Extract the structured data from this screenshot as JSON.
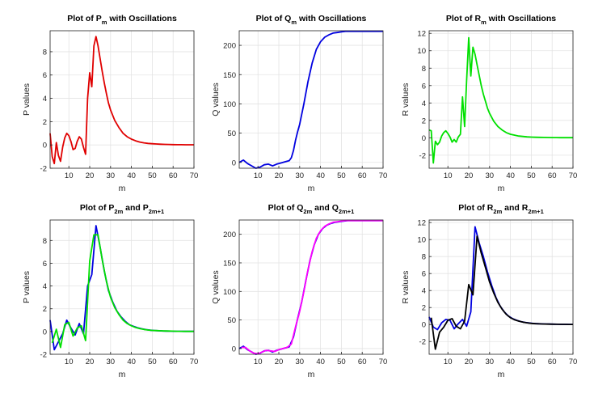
{
  "chart_data": [
    {
      "type": "line",
      "title": "Plot of P_m with Oscillations",
      "title_parts": [
        "Plot of P",
        "m",
        " with Oscillations"
      ],
      "xlabel": "m",
      "ylabel": "P values",
      "xlim": [
        1,
        70
      ],
      "ylim": [
        -2,
        9.8
      ],
      "xticks": [
        10,
        20,
        30,
        40,
        50,
        60,
        70
      ],
      "yticks": [
        -2,
        0,
        2,
        4,
        6,
        8
      ],
      "grid": true,
      "series": [
        {
          "color": "#e00000",
          "x": [
            1,
            2,
            3,
            4,
            5,
            6,
            7,
            8,
            9,
            10,
            11,
            12,
            13,
            14,
            15,
            16,
            17,
            18,
            19,
            20,
            21,
            22,
            23,
            24,
            25,
            26,
            27,
            28,
            29,
            30,
            32,
            34,
            36,
            38,
            40,
            42,
            44,
            46,
            48,
            50,
            52,
            54,
            56,
            58,
            60,
            62,
            64,
            66,
            68,
            70
          ],
          "y": [
            1.0,
            -1.0,
            -1.6,
            0.2,
            -0.9,
            -1.4,
            -0.2,
            0.6,
            1.0,
            0.8,
            0.3,
            -0.4,
            -0.3,
            0.3,
            0.7,
            0.5,
            -0.2,
            -0.8,
            4.0,
            6.2,
            5.0,
            8.5,
            9.3,
            8.5,
            7.4,
            6.3,
            5.3,
            4.4,
            3.6,
            3.0,
            2.1,
            1.5,
            1.0,
            0.7,
            0.5,
            0.35,
            0.25,
            0.18,
            0.13,
            0.1,
            0.08,
            0.06,
            0.05,
            0.04,
            0.03,
            0.02,
            0.02,
            0.01,
            0.01,
            0.01
          ]
        }
      ]
    },
    {
      "type": "line",
      "title": "Plot of Q_m with Oscillations",
      "title_parts": [
        "Plot of Q",
        "m",
        " with Oscillations"
      ],
      "xlabel": "m",
      "ylabel": "Q values",
      "xlim": [
        1,
        70
      ],
      "ylim": [
        -10,
        225
      ],
      "xticks": [
        10,
        20,
        30,
        40,
        50,
        60,
        70
      ],
      "yticks": [
        0,
        50,
        100,
        150,
        200
      ],
      "grid": true,
      "series": [
        {
          "color": "#0000e0",
          "x": [
            1,
            3,
            5,
            7,
            9,
            11,
            13,
            15,
            17,
            19,
            21,
            23,
            25,
            26,
            27,
            28,
            29,
            30,
            32,
            34,
            36,
            38,
            40,
            42,
            44,
            46,
            48,
            50,
            52,
            54,
            56,
            58,
            60,
            62,
            64,
            66,
            68,
            70
          ],
          "y": [
            0,
            4,
            -2,
            -6,
            -10,
            -8,
            -4,
            -3,
            -6,
            -3,
            -1,
            1,
            3,
            8,
            20,
            38,
            52,
            65,
            100,
            138,
            170,
            193,
            206,
            214,
            218,
            221,
            222,
            223,
            224,
            224,
            224,
            224,
            224,
            224,
            224,
            224,
            224,
            224
          ]
        }
      ]
    },
    {
      "type": "line",
      "title": "Plot of R_m with Oscillations",
      "title_parts": [
        "Plot of R",
        "m",
        " with Oscillations"
      ],
      "xlabel": "m",
      "ylabel": "R values",
      "xlim": [
        1,
        70
      ],
      "ylim": [
        -3.5,
        12.3
      ],
      "xticks": [
        10,
        20,
        30,
        40,
        50,
        60,
        70
      ],
      "yticks": [
        -2,
        0,
        2,
        4,
        6,
        8,
        10,
        12
      ],
      "grid": true,
      "series": [
        {
          "color": "#00e000",
          "x": [
            1,
            2,
            3,
            4,
            5,
            6,
            7,
            8,
            9,
            10,
            11,
            12,
            13,
            14,
            15,
            16,
            17,
            18,
            19,
            20,
            21,
            22,
            23,
            24,
            25,
            26,
            27,
            28,
            29,
            30,
            32,
            34,
            36,
            38,
            40,
            42,
            44,
            46,
            48,
            50,
            52,
            54,
            56,
            58,
            60,
            62,
            64,
            66,
            68,
            70
          ],
          "y": [
            0.9,
            0.8,
            -2.9,
            -0.4,
            -0.8,
            -0.5,
            0.2,
            0.6,
            0.8,
            0.5,
            0.1,
            -0.5,
            -0.2,
            -0.5,
            0.1,
            0.4,
            4.7,
            1.3,
            6.6,
            11.5,
            7.1,
            10.4,
            9.6,
            8.4,
            7.2,
            6.0,
            5.0,
            4.2,
            3.4,
            2.8,
            1.9,
            1.3,
            0.9,
            0.6,
            0.4,
            0.3,
            0.2,
            0.15,
            0.11,
            0.08,
            0.06,
            0.05,
            0.04,
            0.03,
            0.02,
            0.02,
            0.01,
            0.01,
            0.01,
            0.01
          ]
        }
      ]
    },
    {
      "type": "line",
      "title": "Plot of P_2m and P_2m+1",
      "title_parts": [
        "Plot of P",
        "2m",
        " and P",
        "2m+1"
      ],
      "xlabel": "m",
      "ylabel": "P values",
      "xlim": [
        1,
        70
      ],
      "ylim": [
        -2,
        9.8
      ],
      "xticks": [
        10,
        20,
        30,
        40,
        50,
        60,
        70
      ],
      "yticks": [
        -2,
        0,
        2,
        4,
        6,
        8
      ],
      "grid": true,
      "series": [
        {
          "color": "#0000e0",
          "x": [
            1,
            3,
            5,
            7,
            9,
            11,
            13,
            15,
            17,
            19,
            21,
            23,
            25,
            27,
            29,
            31,
            33,
            35,
            37,
            39,
            41,
            43,
            45,
            47,
            49,
            51,
            53,
            55,
            57,
            59,
            61,
            63,
            65,
            67,
            69,
            70
          ],
          "y": [
            1.0,
            -1.6,
            -0.9,
            -0.2,
            1.0,
            0.3,
            -0.3,
            0.7,
            -0.2,
            4.0,
            5.0,
            9.3,
            7.4,
            5.3,
            3.6,
            2.6,
            1.8,
            1.3,
            0.9,
            0.6,
            0.45,
            0.33,
            0.24,
            0.17,
            0.12,
            0.09,
            0.07,
            0.05,
            0.04,
            0.03,
            0.02,
            0.02,
            0.01,
            0.01,
            0.01,
            0.01
          ]
        },
        {
          "color": "#00e000",
          "x": [
            2,
            4,
            6,
            8,
            10,
            12,
            14,
            16,
            18,
            20,
            22,
            24,
            26,
            28,
            30,
            32,
            34,
            36,
            38,
            40,
            42,
            44,
            46,
            48,
            50,
            52,
            54,
            56,
            58,
            60,
            62,
            64,
            66,
            68,
            70
          ],
          "y": [
            -1.0,
            0.2,
            -1.4,
            0.6,
            0.8,
            -0.4,
            0.3,
            0.5,
            -0.8,
            6.2,
            8.5,
            8.5,
            6.3,
            4.4,
            3.0,
            2.1,
            1.5,
            1.0,
            0.7,
            0.5,
            0.35,
            0.25,
            0.18,
            0.13,
            0.1,
            0.08,
            0.06,
            0.05,
            0.04,
            0.03,
            0.02,
            0.02,
            0.01,
            0.01,
            0.01
          ]
        }
      ]
    },
    {
      "type": "line",
      "title": "Plot of Q_2m and Q_2m+1",
      "title_parts": [
        "Plot of Q",
        "2m",
        " and Q",
        "2m+1"
      ],
      "xlabel": "m",
      "ylabel": "Q values",
      "xlim": [
        1,
        70
      ],
      "ylim": [
        -10,
        225
      ],
      "xticks": [
        10,
        20,
        30,
        40,
        50,
        60,
        70
      ],
      "yticks": [
        0,
        50,
        100,
        150,
        200
      ],
      "grid": true,
      "series": [
        {
          "color": "#0000e0",
          "x": [
            1,
            3,
            5,
            7,
            9,
            11,
            13,
            15,
            17,
            19,
            21,
            23,
            25,
            27,
            29,
            31,
            33,
            35,
            37,
            39,
            41,
            43,
            45,
            47,
            49,
            51,
            53,
            55,
            57,
            59,
            61,
            63,
            65,
            67,
            69,
            70
          ],
          "y": [
            0,
            4,
            -2,
            -6,
            -10,
            -8,
            -4,
            -3,
            -6,
            -3,
            -1,
            1,
            3,
            20,
            52,
            82,
            120,
            155,
            182,
            200,
            210,
            216,
            219,
            221,
            222,
            223,
            224,
            224,
            224,
            224,
            224,
            224,
            224,
            224,
            224,
            224
          ]
        },
        {
          "color": "#ff00ff",
          "x": [
            2,
            4,
            6,
            8,
            10,
            12,
            14,
            16,
            18,
            20,
            22,
            24,
            26,
            28,
            30,
            32,
            34,
            36,
            38,
            40,
            42,
            44,
            46,
            48,
            50,
            52,
            54,
            56,
            58,
            60,
            62,
            64,
            66,
            68,
            70
          ],
          "y": [
            2,
            2,
            -4,
            -8,
            -9,
            -6,
            -3,
            -4,
            -5,
            -2,
            0,
            2,
            8,
            38,
            65,
            100,
            138,
            170,
            193,
            206,
            214,
            218,
            221,
            222,
            223,
            224,
            224,
            224,
            224,
            224,
            224,
            224,
            224,
            224,
            224
          ]
        }
      ]
    },
    {
      "type": "line",
      "title": "Plot of R_2m and R_2m+1",
      "title_parts": [
        "Plot of R",
        "2m",
        " and R",
        "2m+1"
      ],
      "xlabel": "m",
      "ylabel": "R values",
      "xlim": [
        1,
        70
      ],
      "ylim": [
        -3.5,
        12.3
      ],
      "xticks": [
        10,
        20,
        30,
        40,
        50,
        60,
        70
      ],
      "yticks": [
        -2,
        0,
        2,
        4,
        6,
        8,
        10,
        12
      ],
      "grid": true,
      "series": [
        {
          "color": "#0000e0",
          "x": [
            1,
            3,
            5,
            7,
            9,
            11,
            13,
            15,
            17,
            19,
            21,
            23,
            25,
            27,
            29,
            31,
            33,
            35,
            37,
            39,
            41,
            43,
            45,
            47,
            49,
            51,
            53,
            55,
            57,
            59,
            61,
            63,
            65,
            67,
            69,
            70
          ],
          "y": [
            0.9,
            -0.3,
            -0.6,
            0.2,
            0.6,
            0.5,
            -0.5,
            0.1,
            0.6,
            -0.2,
            1.5,
            11.5,
            9.6,
            8.0,
            6.2,
            4.6,
            3.2,
            2.2,
            1.5,
            1.0,
            0.7,
            0.5,
            0.35,
            0.25,
            0.18,
            0.13,
            0.1,
            0.08,
            0.06,
            0.05,
            0.04,
            0.03,
            0.02,
            0.02,
            0.01,
            0.01
          ]
        },
        {
          "color": "#000000",
          "x": [
            2,
            4,
            6,
            8,
            10,
            12,
            14,
            16,
            18,
            20,
            22,
            24,
            26,
            28,
            30,
            32,
            34,
            36,
            38,
            40,
            42,
            44,
            46,
            48,
            50,
            52,
            54,
            56,
            58,
            60,
            62,
            64,
            66,
            68,
            70
          ],
          "y": [
            0.8,
            -2.9,
            -0.9,
            -0.3,
            0.5,
            0.7,
            -0.2,
            -0.5,
            0.4,
            4.7,
            3.5,
            10.4,
            8.4,
            6.7,
            5.0,
            3.7,
            2.6,
            1.8,
            1.2,
            0.8,
            0.55,
            0.4,
            0.28,
            0.2,
            0.14,
            0.1,
            0.08,
            0.06,
            0.05,
            0.04,
            0.03,
            0.02,
            0.02,
            0.01,
            0.01
          ]
        }
      ]
    }
  ]
}
